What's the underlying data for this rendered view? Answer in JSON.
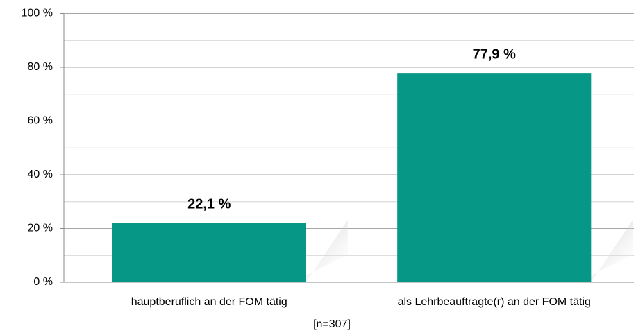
{
  "chart_data": {
    "type": "bar",
    "categories": [
      "hauptberuflich an der FOM tätig",
      "als Lehrbeauftragte(r) an der FOM tätig"
    ],
    "values": [
      22.1,
      77.9
    ],
    "value_labels": [
      "22,1 %",
      "77,9 %"
    ],
    "color": "#069786",
    "ylim": [
      0,
      100
    ],
    "yticks": [
      {
        "value": 0,
        "label": "0 %"
      },
      {
        "value": 20,
        "label": "20 %"
      },
      {
        "value": 40,
        "label": "40 %"
      },
      {
        "value": 60,
        "label": "60 %"
      },
      {
        "value": 80,
        "label": "80 %"
      },
      {
        "value": 100,
        "label": "100 %"
      }
    ],
    "minor_yticks": [
      10,
      30,
      50,
      70,
      90
    ],
    "grid": true,
    "note": "[n=307]"
  }
}
